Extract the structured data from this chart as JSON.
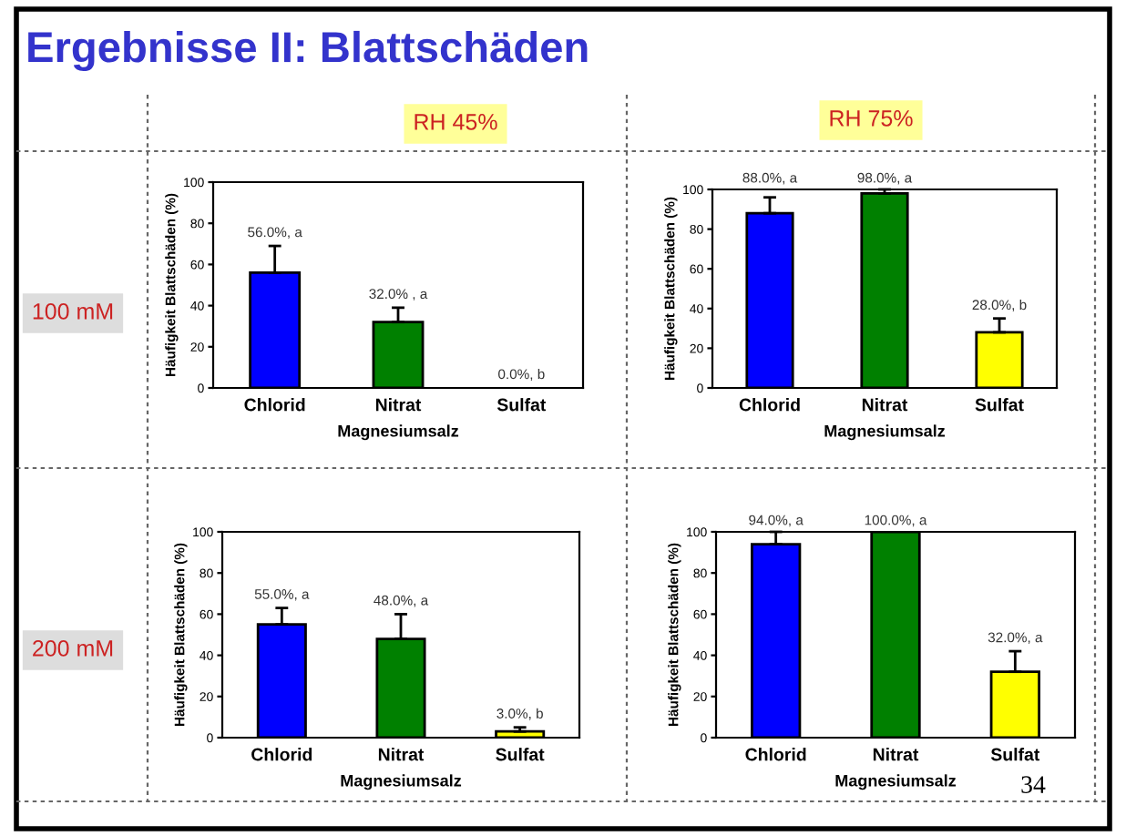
{
  "chart_data": [
    {
      "type": "bar",
      "title": "Ergebnisse II: Blattschäden",
      "annotations": [
        "RH 45%",
        "100 mM"
      ],
      "categories": [
        "Chlorid",
        "Nitrat",
        "Sulfat"
      ],
      "values": [
        56,
        32,
        0
      ],
      "errors": [
        13,
        7,
        null
      ],
      "colors": [
        "#0000ff",
        "#008000",
        "#ffff00"
      ],
      "value_labels": [
        "56.0%, a",
        "32.0% , a",
        "0.0%, b"
      ],
      "xlabel": "Magnesiumsalz",
      "ylabel": "Häufigkeit Blattschäden (%)",
      "ylim": [
        0,
        100
      ],
      "yticks": [
        0,
        20,
        40,
        60,
        80,
        100
      ],
      "grid": false,
      "legend": false
    },
    {
      "type": "bar",
      "annotations": [
        "RH 75%"
      ],
      "categories": [
        "Chlorid",
        "Nitrat",
        "Sulfat"
      ],
      "values": [
        88,
        98,
        28
      ],
      "errors": [
        8,
        2,
        7
      ],
      "colors": [
        "#0000ff",
        "#008000",
        "#ffff00"
      ],
      "value_labels": [
        "88.0%, a",
        "98.0%, a",
        "28.0%, b"
      ],
      "xlabel": "Magnesiumsalz",
      "ylabel": "Häufigkeit Blattschäden (%)",
      "ylim": [
        0,
        100
      ],
      "yticks": [
        0,
        20,
        40,
        60,
        80,
        100
      ],
      "grid": false,
      "legend": false
    },
    {
      "type": "bar",
      "annotations": [
        "200 mM"
      ],
      "categories": [
        "Chlorid",
        "Nitrat",
        "Sulfat"
      ],
      "values": [
        55,
        48,
        3
      ],
      "errors": [
        8,
        12,
        2
      ],
      "colors": [
        "#0000ff",
        "#008000",
        "#ffff00"
      ],
      "value_labels": [
        "55.0%, a",
        "48.0%, a",
        "3.0%, b"
      ],
      "xlabel": "Magnesiumsalz",
      "ylabel": "Häufigkeit Blattschäden (%)",
      "ylim": [
        0,
        100
      ],
      "yticks": [
        0,
        20,
        40,
        60,
        80,
        100
      ],
      "grid": false,
      "legend": false
    },
    {
      "type": "bar",
      "annotations": [
        "34"
      ],
      "categories": [
        "Chlorid",
        "Nitrat",
        "Sulfat"
      ],
      "values": [
        94,
        100,
        32
      ],
      "errors": [
        6,
        null,
        10
      ],
      "colors": [
        "#0000ff",
        "#008000",
        "#ffff00"
      ],
      "value_labels": [
        "94.0%, a",
        "100.0%, a",
        "32.0%, a"
      ],
      "xlabel": "Magnesiumsalz",
      "ylabel": "Häufigkeit Blattschäden (%)",
      "ylim": [
        0,
        100
      ],
      "yticks": [
        0,
        20,
        40,
        60,
        80,
        100
      ],
      "grid": false,
      "legend": false
    }
  ]
}
